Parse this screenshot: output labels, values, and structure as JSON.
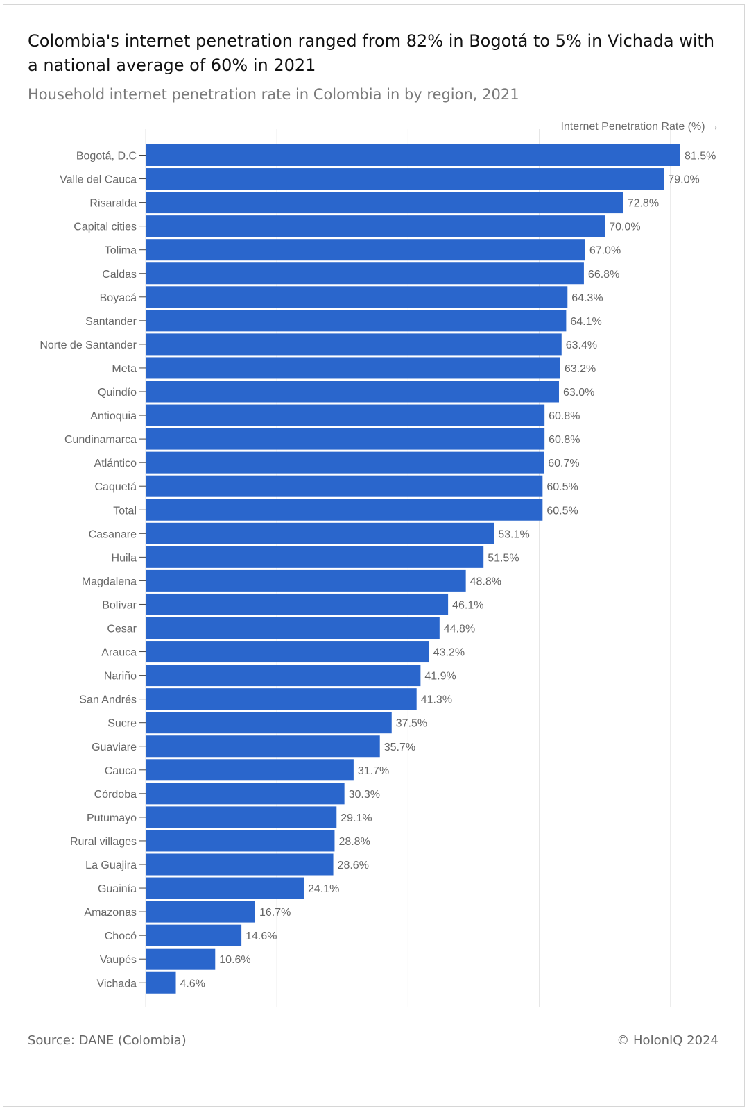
{
  "title": "Colombia's internet penetration ranged from 82% in Bogotá to 5% in Vichada with a national average of 60% in 2021",
  "subtitle": "Household internet penetration rate in Colombia in by region, 2021",
  "footer": {
    "source": "Source: DANE (Colombia)",
    "copyright": "© HolonIQ 2024"
  },
  "colors": {
    "bar": "#2a66cc",
    "grid": "#e3e3e3",
    "label": "#666666"
  },
  "chart_data": {
    "type": "bar",
    "orientation": "horizontal",
    "xlabel": "Internet Penetration Rate (%) →",
    "xlim": [
      0,
      100
    ],
    "grid": true,
    "categories": [
      "Bogotá, D.C",
      "Valle del Cauca",
      "Risaralda",
      "Capital cities",
      "Tolima",
      "Caldas",
      "Boyacá",
      "Santander",
      "Norte de Santander",
      "Meta",
      "Quindío",
      "Antioquia",
      "Cundinamarca",
      "Atlántico",
      "Caquetá",
      "Total",
      "Casanare",
      "Huila",
      "Magdalena",
      "Bolívar",
      "Cesar",
      "Arauca",
      "Nariño",
      "San Andrés",
      "Sucre",
      "Guaviare",
      "Cauca",
      "Córdoba",
      "Putumayo",
      "Rural villages",
      "La Guajira",
      "Guainía",
      "Amazonas",
      "Chocó",
      "Vaupés",
      "Vichada"
    ],
    "values": [
      81.5,
      79.0,
      72.8,
      70.0,
      67.0,
      66.8,
      64.3,
      64.1,
      63.4,
      63.2,
      63.0,
      60.8,
      60.8,
      60.7,
      60.5,
      60.5,
      53.1,
      51.5,
      48.8,
      46.1,
      44.8,
      43.2,
      41.9,
      41.3,
      37.5,
      35.7,
      31.7,
      30.3,
      29.1,
      28.8,
      28.6,
      24.1,
      16.7,
      14.6,
      10.6,
      4.6
    ],
    "value_labels": [
      "81.5%",
      "79.0%",
      "72.8%",
      "70.0%",
      "67.0%",
      "66.8%",
      "64.3%",
      "64.1%",
      "63.4%",
      "63.2%",
      "63.0%",
      "60.8%",
      "60.8%",
      "60.7%",
      "60.5%",
      "60.5%",
      "53.1%",
      "51.5%",
      "48.8%",
      "46.1%",
      "44.8%",
      "43.2%",
      "41.9%",
      "41.3%",
      "37.5%",
      "35.7%",
      "31.7%",
      "30.3%",
      "29.1%",
      "28.8%",
      "28.6%",
      "24.1%",
      "16.7%",
      "14.6%",
      "10.6%",
      "4.6%"
    ]
  }
}
